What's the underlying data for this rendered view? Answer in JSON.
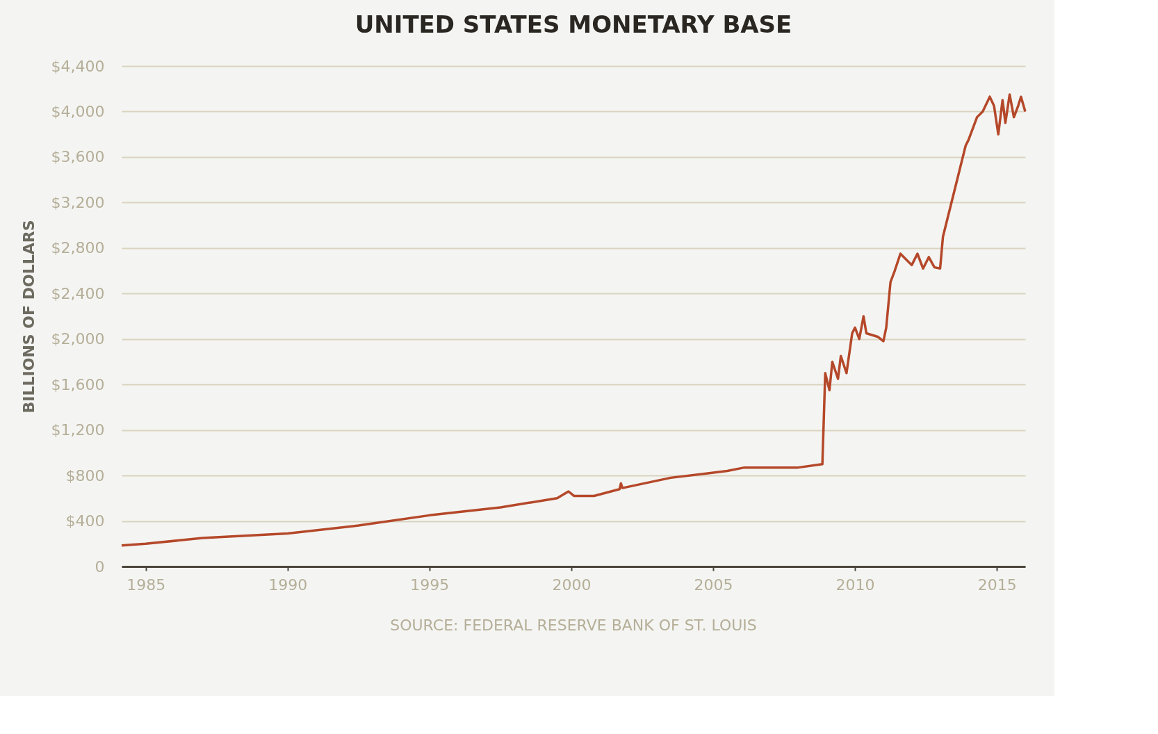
{
  "chart_data": {
    "type": "line",
    "title": "UNITED STATES MONETARY BASE",
    "ylabel": "BILLIONS OF DOLLARS",
    "annotations": [
      "SOURCE: FEDERAL RESERVE BANK OF ST. LOUIS"
    ],
    "x": [
      1984.15,
      1985,
      1987,
      1990,
      1992.5,
      1995,
      1997.5,
      1999.5,
      1999.9,
      2000.1,
      2000.8,
      2001.7,
      2001.75,
      2001.8,
      2003.5,
      2005.5,
      2006.1,
      2008,
      2008.85,
      2008.95,
      2009.1,
      2009.2,
      2009.4,
      2009.5,
      2009.7,
      2009.9,
      2010.0,
      2010.15,
      2010.3,
      2010.4,
      2010.8,
      2011.0,
      2011.1,
      2011.25,
      2011.4,
      2011.6,
      2011.8,
      2012.0,
      2012.2,
      2012.4,
      2012.6,
      2012.8,
      2013.0,
      2013.1,
      2013.5,
      2013.9,
      2014.0,
      2014.3,
      2014.5,
      2014.75,
      2014.9,
      2015.05,
      2015.2,
      2015.3,
      2015.45,
      2015.6,
      2015.75,
      2015.85,
      2016.0
    ],
    "series": [
      {
        "color": "#b5482a",
        "values": [
          185,
          200,
          250,
          290,
          360,
          450,
          520,
          600,
          660,
          620,
          620,
          680,
          730,
          690,
          780,
          840,
          870,
          870,
          900,
          1700,
          1550,
          1800,
          1650,
          1850,
          1700,
          2050,
          2100,
          2000,
          2200,
          2050,
          2020,
          1980,
          2100,
          2500,
          2600,
          2750,
          2700,
          2650,
          2750,
          2620,
          2720,
          2630,
          2620,
          2900,
          3300,
          3700,
          3750,
          3950,
          4000,
          4130,
          4050,
          3800,
          4100,
          3900,
          4150,
          3950,
          4050,
          4130,
          4000
        ]
      }
    ],
    "xlim": [
      1984.15,
      2016
    ],
    "xticks": [
      1985,
      1990,
      1995,
      2000,
      2005,
      2010,
      2015
    ],
    "ylim": [
      0,
      4400
    ],
    "yticks": [
      0,
      {
        "value": 400,
        "label": "$400"
      },
      {
        "value": 800,
        "label": "$800"
      },
      {
        "value": 1200,
        "label": "$1,200"
      },
      {
        "value": 1600,
        "label": "$1,600"
      },
      {
        "value": 2000,
        "label": "$2,000"
      },
      {
        "value": 2400,
        "label": "$2,400"
      },
      {
        "value": 2800,
        "label": "$2,800"
      },
      {
        "value": 3200,
        "label": "$3,200"
      },
      {
        "value": 3600,
        "label": "$3,600"
      },
      {
        "value": 4000,
        "label": "$4,000"
      },
      {
        "value": 4400,
        "label": "$4,400"
      }
    ],
    "grid": "y",
    "line_style": "solid",
    "marker": "none",
    "legend": false
  }
}
